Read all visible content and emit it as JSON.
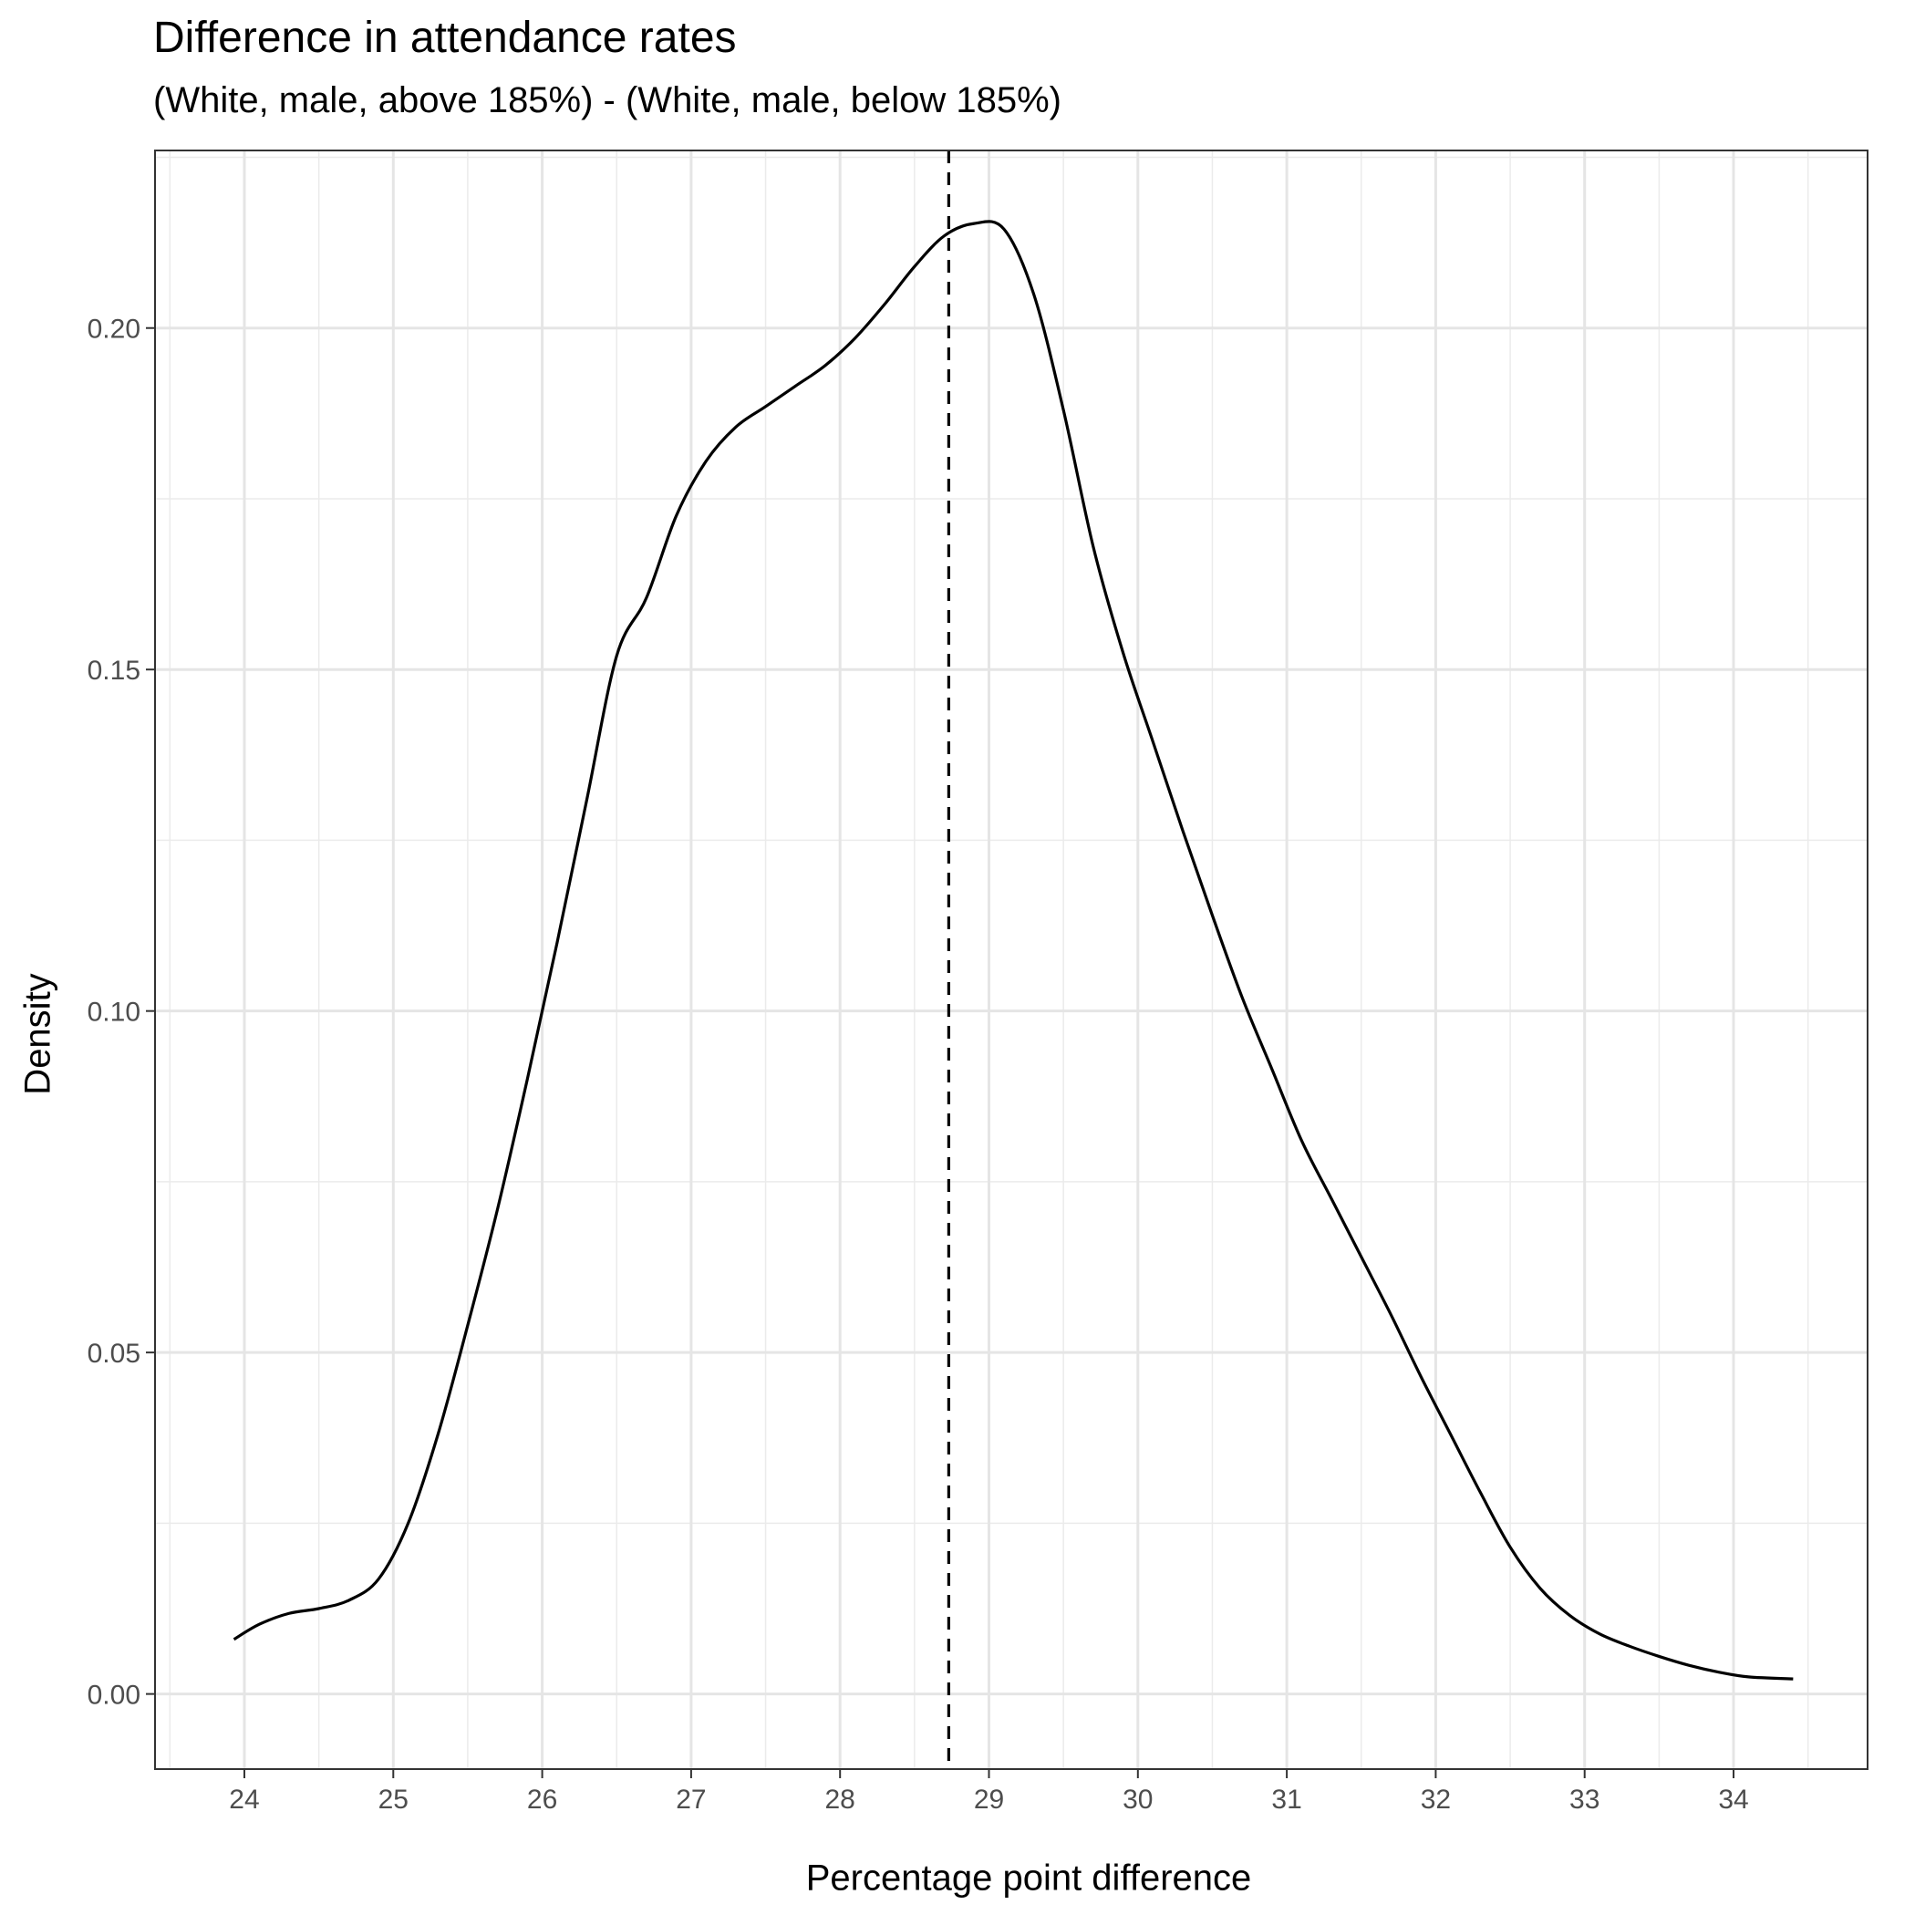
{
  "chart_data": {
    "type": "line",
    "title": "Difference in attendance rates",
    "subtitle": "(White, male, above 185%) - (White, male, below 185%)",
    "xlabel": "Percentage point difference",
    "ylabel": "Density",
    "xlim": [
      23.4,
      34.9
    ],
    "ylim": [
      -0.011,
      0.226
    ],
    "x_ticks": [
      24,
      25,
      26,
      27,
      28,
      29,
      30,
      31,
      32,
      33,
      34
    ],
    "x_tick_labels": [
      "24",
      "25",
      "26",
      "27",
      "28",
      "29",
      "30",
      "31",
      "32",
      "33",
      "34"
    ],
    "y_ticks": [
      0.0,
      0.05,
      0.1,
      0.15,
      0.2
    ],
    "y_tick_labels": [
      "0.00",
      "0.05",
      "0.10",
      "0.15",
      "0.20"
    ],
    "grid": true,
    "series": [
      {
        "x": [
          23.93,
          24.1,
          24.3,
          24.5,
          24.7,
          24.9,
          25.1,
          25.3,
          25.5,
          25.7,
          25.9,
          26.1,
          26.3,
          26.5,
          26.7,
          26.9,
          27.1,
          27.3,
          27.5,
          27.7,
          27.9,
          28.1,
          28.3,
          28.5,
          28.7,
          28.9,
          29.1,
          29.3,
          29.5,
          29.7,
          29.9,
          30.1,
          30.3,
          30.5,
          30.7,
          30.9,
          31.1,
          31.3,
          31.5,
          31.7,
          31.9,
          32.1,
          32.3,
          32.5,
          32.7,
          32.9,
          33.1,
          33.3,
          33.5,
          33.7,
          33.9,
          34.1,
          34.4
        ],
        "y": [
          0.008,
          0.0102,
          0.0118,
          0.0125,
          0.0137,
          0.0168,
          0.025,
          0.038,
          0.054,
          0.071,
          0.09,
          0.11,
          0.131,
          0.152,
          0.1605,
          0.1725,
          0.1805,
          0.1855,
          0.1885,
          0.1915,
          0.1945,
          0.1985,
          0.2035,
          0.209,
          0.2135,
          0.2153,
          0.2145,
          0.205,
          0.188,
          0.168,
          0.1525,
          0.1395,
          0.1265,
          0.114,
          0.102,
          0.0915,
          0.081,
          0.0725,
          0.064,
          0.0555,
          0.0465,
          0.038,
          0.0295,
          0.0215,
          0.0155,
          0.0115,
          0.0088,
          0.007,
          0.0055,
          0.0042,
          0.0032,
          0.0025,
          0.0022
        ]
      }
    ],
    "reference_line": {
      "x": 28.73,
      "style": "dashed"
    }
  }
}
